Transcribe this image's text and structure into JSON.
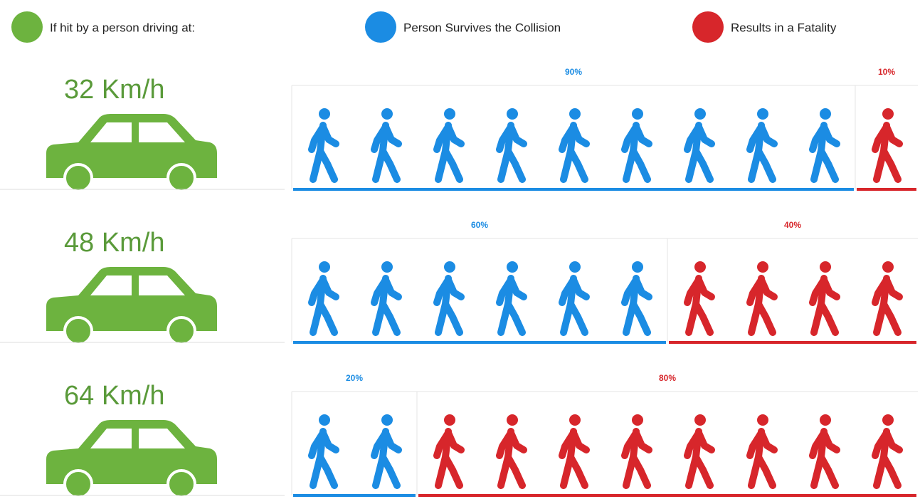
{
  "chart_data": {
    "type": "pictogram",
    "speed_legend": {
      "label": "If hit by a person driving at:",
      "color": "#6db33f"
    },
    "categories": [
      "32 Km/h",
      "48 Km/h",
      "64 Km/h"
    ],
    "series": [
      {
        "name": "Person Survives the Collision",
        "color": "#1b8ce3",
        "values": [
          90,
          60,
          20
        ],
        "value_labels": [
          "90%",
          "60%",
          "20%"
        ]
      },
      {
        "name": "Results in a Fatality",
        "color": "#d7262b",
        "values": [
          10,
          40,
          80
        ],
        "value_labels": [
          "10%",
          "40%",
          "80%"
        ]
      }
    ],
    "xlim": [
      0,
      100
    ]
  }
}
